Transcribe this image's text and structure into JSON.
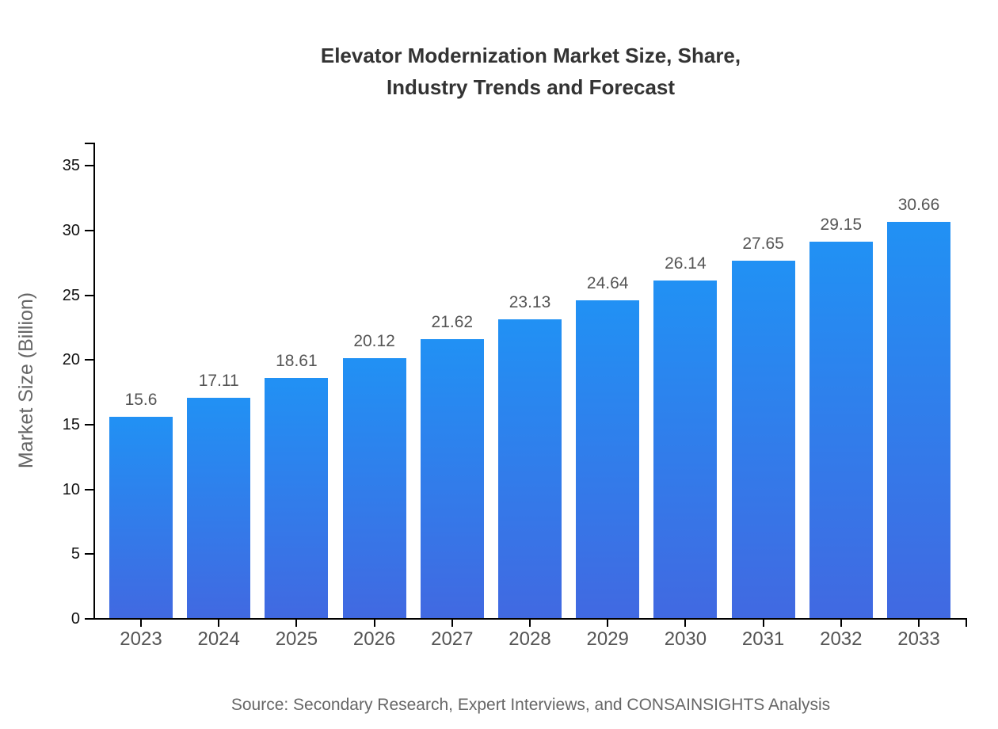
{
  "title": {
    "line1": "Elevator Modernization Market Size, Share,",
    "line2": "Industry Trends and Forecast"
  },
  "source": "Source: Secondary Research, Expert Interviews, and CONSAINSIGHTS Analysis",
  "chart_data": {
    "type": "bar",
    "title": "Elevator Modernization Market Size, Share, Industry Trends and Forecast",
    "categories": [
      "2023",
      "2024",
      "2025",
      "2026",
      "2027",
      "2028",
      "2029",
      "2030",
      "2031",
      "2032",
      "2033"
    ],
    "values": [
      15.6,
      17.11,
      18.61,
      20.12,
      21.62,
      23.13,
      24.64,
      26.14,
      27.65,
      29.15,
      30.66
    ],
    "value_labels": [
      "15.6",
      "17.11",
      "18.61",
      "20.12",
      "21.62",
      "23.13",
      "24.64",
      "26.14",
      "27.65",
      "29.15",
      "30.66"
    ],
    "xlabel": "",
    "ylabel": "Market Size (Billion)",
    "ylim": [
      0,
      36.8
    ],
    "yticks": [
      0,
      5,
      10,
      15,
      20,
      25,
      30,
      35
    ],
    "grid": false,
    "legend": "none",
    "bar_color_top": "#2191f4",
    "bar_color_bottom": "#4169e1",
    "label_color": "#555555",
    "axis_color": "#000000"
  }
}
